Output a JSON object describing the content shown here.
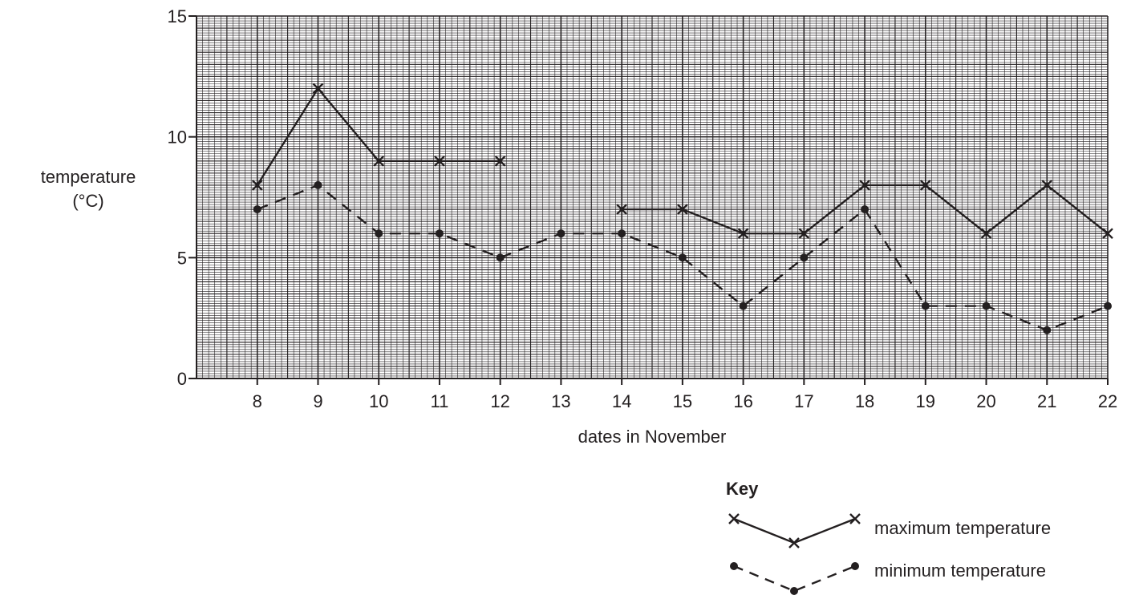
{
  "chart_data": {
    "type": "line",
    "title": "",
    "xlabel": "dates in November",
    "ylabel_line1": "temperature",
    "ylabel_line2": "(°C)",
    "x_ticks": [
      8,
      9,
      10,
      11,
      12,
      13,
      14,
      15,
      16,
      17,
      18,
      19,
      20,
      21,
      22
    ],
    "y_ticks": [
      0,
      5,
      10,
      15
    ],
    "xlim": [
      7,
      22
    ],
    "ylim": [
      0,
      15
    ],
    "grid": true,
    "minor_grid_step": 0.5,
    "series": [
      {
        "name": "maximum temperature",
        "marker": "cross",
        "line": "solid",
        "segments": [
          [
            [
              8,
              8
            ],
            [
              9,
              12
            ],
            [
              10,
              9
            ],
            [
              11,
              9
            ],
            [
              12,
              9
            ]
          ],
          [
            [
              14,
              7
            ],
            [
              15,
              7
            ],
            [
              16,
              6
            ],
            [
              17,
              6
            ],
            [
              18,
              8
            ],
            [
              19,
              8
            ],
            [
              20,
              6
            ],
            [
              21,
              8
            ],
            [
              22,
              6
            ]
          ]
        ]
      },
      {
        "name": "minimum temperature",
        "marker": "dot",
        "line": "dashed",
        "segments": [
          [
            [
              8,
              7
            ],
            [
              9,
              8
            ],
            [
              10,
              6
            ],
            [
              11,
              6
            ],
            [
              12,
              5
            ],
            [
              13,
              6
            ],
            [
              14,
              6
            ],
            [
              15,
              5
            ],
            [
              16,
              3
            ],
            [
              17,
              5
            ],
            [
              18,
              7
            ],
            [
              19,
              3
            ],
            [
              20,
              3
            ],
            [
              21,
              2
            ],
            [
              22,
              3
            ]
          ]
        ]
      }
    ],
    "legend": {
      "title": "Key",
      "placement": "bottom-right"
    }
  },
  "colors": {
    "ink": "#231f20",
    "grid": "#231f20"
  }
}
